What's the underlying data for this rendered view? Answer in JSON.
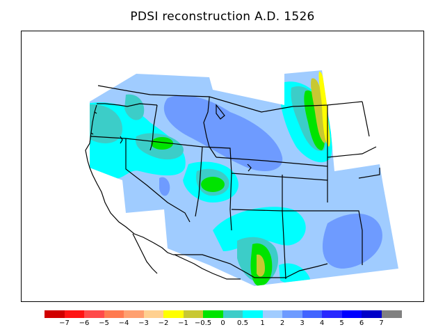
{
  "title": "PDSI reconstruction A.D. 1526",
  "legend": {
    "colors": [
      "#d00000",
      "#ff1414",
      "#ff4a4a",
      "#ff7a50",
      "#ffa070",
      "#ffd090",
      "#ffff00",
      "#c8c832",
      "#00e400",
      "#3ccdc8",
      "#00ffff",
      "#a0ccff",
      "#6e9bff",
      "#4164ff",
      "#2828ff",
      "#0000ff",
      "#0000c8",
      "#808080"
    ],
    "labels": [
      "−7",
      "−6",
      "−5",
      "−4",
      "−3",
      "−2",
      "−1",
      "−0.5",
      "0",
      "0.5",
      "1",
      "2",
      "3",
      "4",
      "5",
      "6",
      "7"
    ]
  },
  "map": {
    "region": "Western United States",
    "colors": {
      "very_dry": "#ffff00",
      "dry": "#c8c832",
      "near_normal_green": "#00e400",
      "teal": "#3ccdc8",
      "cyan": "#00ffff",
      "light_blue": "#a0ccff",
      "medium_blue": "#6e9bff",
      "boundary": "#000000"
    }
  }
}
